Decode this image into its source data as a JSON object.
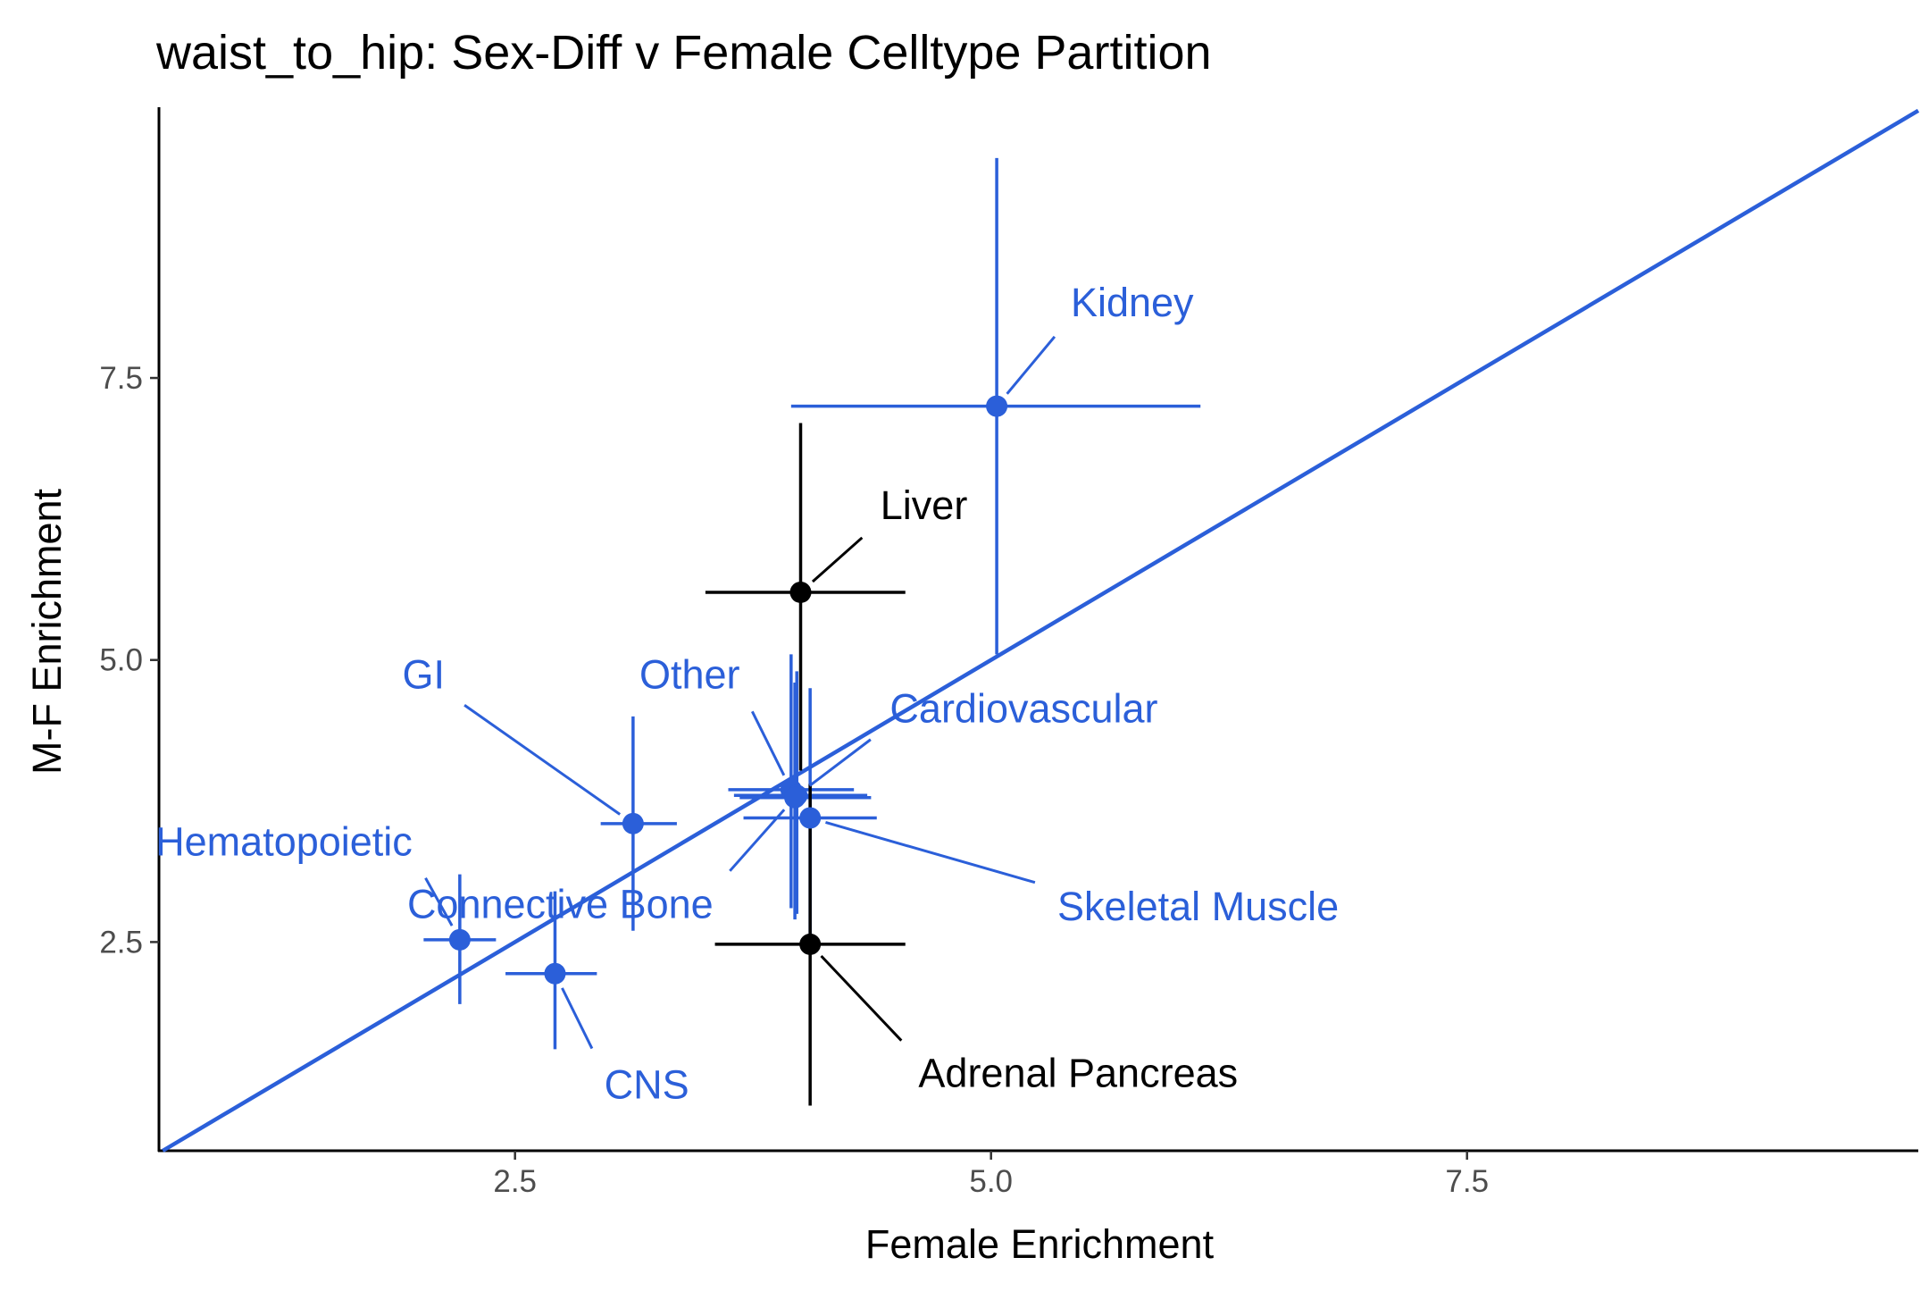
{
  "chart_data": {
    "type": "scatter",
    "title": "waist_to_hip: Sex-Diff v Female Celltype Partition",
    "xlabel": "Female Enrichment",
    "ylabel": "M-F Enrichment",
    "xlim": [
      0.63,
      9.87
    ],
    "ylim": [
      0.65,
      9.9
    ],
    "xticks": [
      {
        "value": 2.5,
        "label": "2.5"
      },
      {
        "value": 5.0,
        "label": "5.0"
      },
      {
        "value": 7.5,
        "label": "7.5"
      }
    ],
    "yticks": [
      {
        "value": 2.5,
        "label": "2.5"
      },
      {
        "value": 5.0,
        "label": "5.0"
      },
      {
        "value": 7.5,
        "label": "7.5"
      }
    ],
    "grid": false,
    "legend": "none",
    "reference_line": {
      "type": "identity",
      "slope": 1,
      "intercept": 0,
      "color": "#2b5fd9"
    },
    "colors": {
      "significant": "#2b5fd9",
      "not_significant": "#000000"
    },
    "points": [
      {
        "name": "Kidney",
        "x": 5.03,
        "y": 7.25,
        "xmin": 3.95,
        "xmax": 6.1,
        "ymin": 5.05,
        "ymax": 9.45,
        "color": "#2b5fd9",
        "label_x": 5.4,
        "label_y": 8.0
      },
      {
        "name": "Liver",
        "x": 4.0,
        "y": 5.6,
        "xmin": 3.5,
        "xmax": 4.55,
        "ymin": 4.02,
        "ymax": 7.1,
        "color": "#000000",
        "label_x": 4.4,
        "label_y": 6.2
      },
      {
        "name": "GI",
        "x": 3.12,
        "y": 3.55,
        "xmin": 2.95,
        "xmax": 3.35,
        "ymin": 2.6,
        "ymax": 4.5,
        "color": "#2b5fd9",
        "label_x": 2.15,
        "label_y": 4.7
      },
      {
        "name": "Other",
        "x": 3.95,
        "y": 3.85,
        "xmin": 3.62,
        "xmax": 4.28,
        "ymin": 2.8,
        "ymax": 5.05,
        "color": "#2b5fd9",
        "label_x": 3.7,
        "label_y": 4.7
      },
      {
        "name": "Cardiovascular",
        "x": 3.98,
        "y": 3.8,
        "xmin": 3.65,
        "xmax": 4.35,
        "ymin": 2.75,
        "ymax": 4.9,
        "color": "#2b5fd9",
        "label_x": 4.45,
        "label_y": 4.4
      },
      {
        "name": "Connective Bone",
        "x": 3.97,
        "y": 3.78,
        "xmin": 3.68,
        "xmax": 4.37,
        "ymin": 2.7,
        "ymax": 4.8,
        "color": "#2b5fd9",
        "label_x": 3.56,
        "label_y": 3.0
      },
      {
        "name": "Skeletal Muscle",
        "x": 4.05,
        "y": 3.6,
        "xmin": 3.7,
        "xmax": 4.4,
        "ymin": 2.55,
        "ymax": 4.75,
        "color": "#2b5fd9",
        "label_x": 5.33,
        "label_y": 2.98
      },
      {
        "name": "Adrenal Pancreas",
        "x": 4.05,
        "y": 2.48,
        "xmin": 3.55,
        "xmax": 4.55,
        "ymin": 1.05,
        "ymax": 3.9,
        "color": "#000000",
        "label_x": 4.6,
        "label_y": 1.5
      },
      {
        "name": "Hematopoietic",
        "x": 2.21,
        "y": 2.52,
        "xmin": 2.02,
        "xmax": 2.4,
        "ymin": 1.95,
        "ymax": 3.1,
        "color": "#2b5fd9",
        "label_x": 1.98,
        "label_y": 3.22
      },
      {
        "name": "CNS",
        "x": 2.71,
        "y": 2.22,
        "xmin": 2.45,
        "xmax": 2.93,
        "ymin": 1.55,
        "ymax": 2.95,
        "color": "#2b5fd9",
        "label_x": 2.95,
        "label_y": 1.4
      }
    ]
  }
}
